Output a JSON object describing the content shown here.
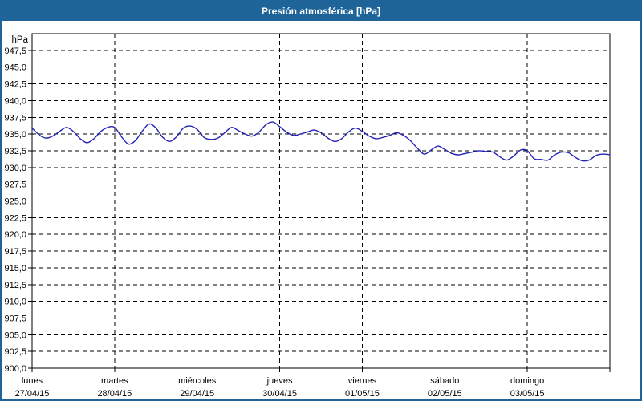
{
  "header": {
    "title": "Presión atmosférica [hPa]"
  },
  "colors": {
    "titlebar_bg": "#1e6498",
    "titlebar_text": "#ffffff",
    "window_border": "#1e6498",
    "plot_bg": "#ffffff",
    "grid": "#000000",
    "axis": "#000000",
    "line": "#2323b4",
    "label_text": "#000000"
  },
  "chart_data": {
    "type": "line",
    "title": "Presión atmosférica [hPa]",
    "ylabel": "hPa",
    "xlabel": "",
    "ylim": [
      900,
      950
    ],
    "ytick_step": 2.5,
    "ytick_labels": [
      "900,0",
      "902,5",
      "905,0",
      "907,5",
      "910,0",
      "912,5",
      "915,0",
      "917,5",
      "920,0",
      "922,5",
      "925,0",
      "927,5",
      "930,0",
      "932,5",
      "935,0",
      "937,5",
      "940,0",
      "942,5",
      "945,0",
      "947,5"
    ],
    "grid": {
      "dashed": true,
      "color": "#000000",
      "horizontal": true,
      "vertical": true
    },
    "legend_position": "none",
    "x_unit": "hours",
    "x_step_hours": 2,
    "x_range_hours": [
      0,
      168
    ],
    "days": [
      {
        "name": "lunes",
        "date": "27/04/15"
      },
      {
        "name": "martes",
        "date": "28/04/15"
      },
      {
        "name": "miércoles",
        "date": "29/04/15"
      },
      {
        "name": "jueves",
        "date": "30/04/15"
      },
      {
        "name": "viernes",
        "date": "01/05/15"
      },
      {
        "name": "sábado",
        "date": "02/05/15"
      },
      {
        "name": "domingo",
        "date": "03/05/15"
      }
    ],
    "series": [
      {
        "name": "Presión atmosférica",
        "color": "#2323b4",
        "values": [
          935.9,
          934.9,
          934.4,
          934.7,
          935.4,
          936.0,
          935.4,
          934.3,
          933.7,
          934.3,
          935.4,
          936.0,
          936.0,
          934.6,
          933.5,
          934.0,
          935.4,
          936.5,
          935.9,
          934.5,
          933.9,
          934.6,
          935.9,
          936.2,
          935.7,
          934.5,
          934.2,
          934.4,
          935.2,
          936.0,
          935.5,
          935.0,
          934.7,
          935.3,
          936.4,
          936.8,
          936.1,
          935.3,
          934.8,
          935.0,
          935.3,
          935.6,
          935.2,
          934.4,
          933.9,
          934.3,
          935.3,
          935.9,
          935.4,
          934.7,
          934.3,
          934.5,
          934.8,
          935.2,
          934.8,
          934.0,
          932.9,
          932.0,
          932.6,
          933.2,
          932.7,
          932.1,
          931.9,
          932.1,
          932.3,
          932.5,
          932.4,
          932.3,
          931.6,
          931.1,
          931.7,
          932.6,
          932.5,
          931.3,
          931.2,
          931.1,
          931.9,
          932.3,
          932.2,
          931.5,
          931.0,
          931.1,
          931.8,
          932.0,
          931.9
        ]
      }
    ]
  }
}
